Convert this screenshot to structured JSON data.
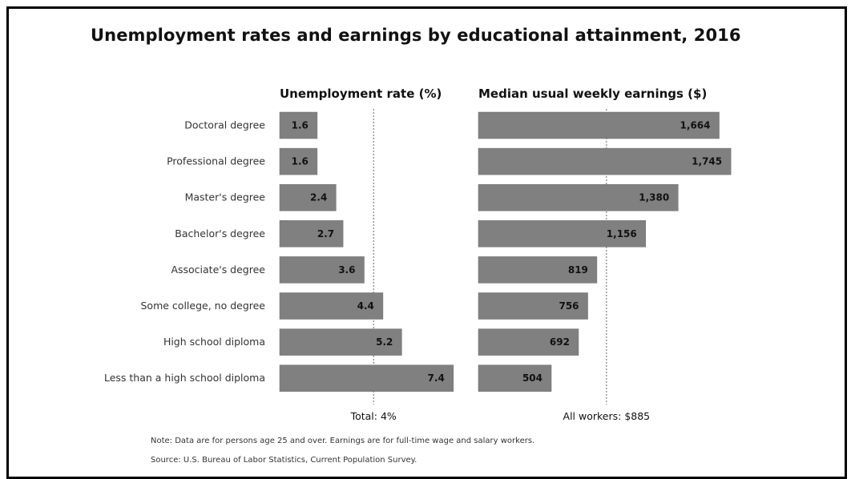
{
  "title": "Unemployment rates and earnings by educational attainment, 2016",
  "chart_data": [
    {
      "type": "bar",
      "orientation": "horizontal",
      "title": "Unemployment rate (%)",
      "categories": [
        "Doctoral degree",
        "Professional degree",
        "Master's degree",
        "Bachelor's degree",
        "Associate's degree",
        "Some college, no degree",
        "High school diploma",
        "Less than a high school diploma"
      ],
      "values": [
        1.6,
        1.6,
        2.4,
        2.7,
        3.6,
        4.4,
        5.2,
        7.4
      ],
      "value_labels": [
        "1.6",
        "1.6",
        "2.4",
        "2.7",
        "3.6",
        "4.4",
        "5.2",
        "7.4"
      ],
      "reference_line": {
        "value": 4,
        "label": "Total: 4%"
      },
      "bar_color": "#808080"
    },
    {
      "type": "bar",
      "orientation": "horizontal",
      "title": "Median usual weekly earnings ($)",
      "categories": [
        "Doctoral degree",
        "Professional degree",
        "Master's degree",
        "Bachelor's degree",
        "Associate's degree",
        "Some college, no degree",
        "High school diploma",
        "Less than a high school diploma"
      ],
      "values": [
        1664,
        1745,
        1380,
        1156,
        819,
        756,
        692,
        504
      ],
      "value_labels": [
        "1,664",
        "1,745",
        "1,380",
        "1,156",
        "819",
        "756",
        "692",
        "504"
      ],
      "reference_line": {
        "value": 885,
        "label": "All workers: $885"
      },
      "bar_color": "#808080"
    }
  ],
  "note": "Note: Data are for persons age 25 and over. Earnings are for full-time wage and salary workers.",
  "source": "Source: U.S. Bureau of Labor Statistics, Current Population Survey."
}
